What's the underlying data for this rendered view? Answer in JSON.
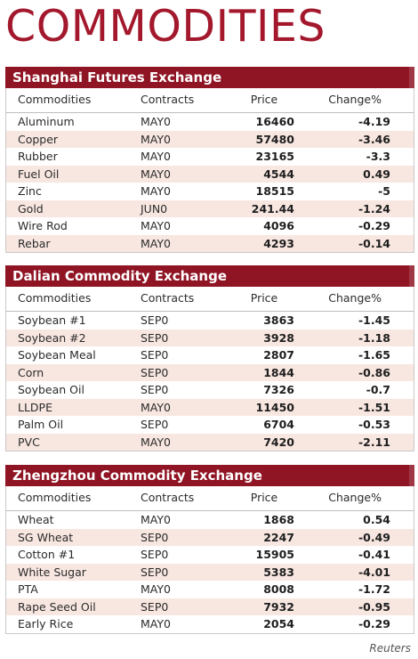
{
  "title": "COMMODITIES",
  "columns": [
    "Commodities",
    "Contracts",
    "Price",
    "Change%"
  ],
  "sections": [
    {
      "name": "Shanghai Futures Exchange",
      "rows": [
        [
          "Aluminum",
          "MAY0",
          "16460",
          "-4.19"
        ],
        [
          "Copper",
          "MAY0",
          "57480",
          "-3.46"
        ],
        [
          "Rubber",
          "MAY0",
          "23165",
          "-3.3"
        ],
        [
          "Fuel Oil",
          "MAY0",
          "4544",
          "0.49"
        ],
        [
          "Zinc",
          "MAY0",
          "18515",
          "-5"
        ],
        [
          "Gold",
          "JUN0",
          "241.44",
          "-1.24"
        ],
        [
          "Wire Rod",
          "MAY0",
          "4096",
          "-0.29"
        ],
        [
          "Rebar",
          "MAY0",
          "4293",
          "-0.14"
        ]
      ]
    },
    {
      "name": "Dalian Commodity Exchange",
      "rows": [
        [
          "Soybean #1",
          "SEP0",
          "3863",
          "-1.45"
        ],
        [
          "Soybean #2",
          "SEP0",
          "3928",
          "-1.18"
        ],
        [
          "Soybean Meal",
          "SEP0",
          "2807",
          "-1.65"
        ],
        [
          "Corn",
          "SEP0",
          "1844",
          "-0.86"
        ],
        [
          "Soybean Oil",
          "SEP0",
          "7326",
          "-0.7"
        ],
        [
          "LLDPE",
          "MAY0",
          "11450",
          "-1.51"
        ],
        [
          "Palm Oil",
          "SEP0",
          "6704",
          "-0.53"
        ],
        [
          "PVC",
          "MAY0",
          "7420",
          "-2.11"
        ]
      ]
    },
    {
      "name": "Zhengzhou Commodity Exchange",
      "rows": [
        [
          "Wheat",
          "MAY0",
          "1868",
          "0.54"
        ],
        [
          "SG Wheat",
          "SEP0",
          "2247",
          "-0.49"
        ],
        [
          "Cotton #1",
          "SEP0",
          "15905",
          "-0.41"
        ],
        [
          "White Sugar",
          "SEP0",
          "5383",
          "-4.01"
        ],
        [
          "PTA",
          "MAY0",
          "8008",
          "-1.72"
        ],
        [
          "Rape Seed Oil",
          "SEP0",
          "7932",
          "-0.95"
        ],
        [
          "Early Rice",
          "MAY0",
          "2054",
          "-0.29"
        ]
      ]
    }
  ],
  "source": "Reuters",
  "colors": {
    "accent": "#a3182c",
    "band": "#8f1424",
    "alt_row": "#f8e7e1"
  }
}
